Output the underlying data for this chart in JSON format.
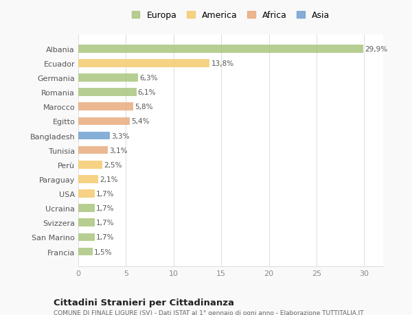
{
  "categories": [
    "Albania",
    "Ecuador",
    "Germania",
    "Romania",
    "Marocco",
    "Egitto",
    "Bangladesh",
    "Tunisia",
    "Perù",
    "Paraguay",
    "USA",
    "Ucraina",
    "Svizzera",
    "San Marino",
    "Francia"
  ],
  "values": [
    29.9,
    13.8,
    6.3,
    6.1,
    5.8,
    5.4,
    3.3,
    3.1,
    2.5,
    2.1,
    1.7,
    1.7,
    1.7,
    1.7,
    1.5
  ],
  "labels": [
    "29,9%",
    "13,8%",
    "6,3%",
    "6,1%",
    "5,8%",
    "5,4%",
    "3,3%",
    "3,1%",
    "2,5%",
    "2,1%",
    "1,7%",
    "1,7%",
    "1,7%",
    "1,7%",
    "1,5%"
  ],
  "colors": [
    "#a8c47a",
    "#f5c96a",
    "#a8c47a",
    "#a8c47a",
    "#e8a97a",
    "#e8a97a",
    "#6b9ecf",
    "#e8a97a",
    "#f5c96a",
    "#f5c96a",
    "#f5c96a",
    "#a8c47a",
    "#a8c47a",
    "#a8c47a",
    "#a8c47a"
  ],
  "legend_labels": [
    "Europa",
    "America",
    "Africa",
    "Asia"
  ],
  "legend_colors": [
    "#a8c47a",
    "#f5c96a",
    "#e8a97a",
    "#6b9ecf"
  ],
  "title": "Cittadini Stranieri per Cittadinanza",
  "subtitle": "COMUNE DI FINALE LIGURE (SV) - Dati ISTAT al 1° gennaio di ogni anno - Elaborazione TUTTITALIA.IT",
  "xlim": [
    0,
    32
  ],
  "xticks": [
    0,
    5,
    10,
    15,
    20,
    25,
    30
  ],
  "background_color": "#f9f9f9",
  "bar_background": "#ffffff"
}
